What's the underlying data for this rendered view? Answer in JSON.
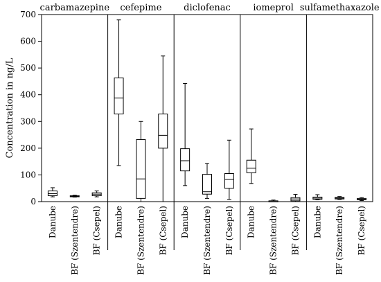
{
  "chart_data": {
    "type": "boxplot",
    "ylabel": "Concentration in ng/L",
    "ylim": [
      0,
      700
    ],
    "yticks": [
      0,
      100,
      200,
      300,
      400,
      500,
      600,
      700
    ],
    "grid": false,
    "categories": [
      "Danube",
      "BF (Szentendre)",
      "BF (Csepel)"
    ],
    "panels": [
      {
        "title": "carbamazepine",
        "boxes": [
          {
            "category": "Danube",
            "min": 18,
            "q1": 22,
            "median": 30,
            "q3": 40,
            "max": 52
          },
          {
            "category": "BF (Szentendre)",
            "min": 17,
            "q1": 19,
            "median": 20,
            "q3": 22,
            "max": 24
          },
          {
            "category": "BF (Csepel)",
            "min": 18,
            "q1": 22,
            "median": 28,
            "q3": 33,
            "max": 40
          }
        ]
      },
      {
        "title": "cefepime",
        "boxes": [
          {
            "category": "Danube",
            "min": 135,
            "q1": 328,
            "median": 388,
            "q3": 463,
            "max": 680
          },
          {
            "category": "BF (Szentendre)",
            "min": 0,
            "q1": 12,
            "median": 85,
            "q3": 232,
            "max": 300
          },
          {
            "category": "BF (Csepel)",
            "min": 0,
            "q1": 200,
            "median": 248,
            "q3": 328,
            "max": 545
          }
        ]
      },
      {
        "title": "diclofenac",
        "boxes": [
          {
            "category": "Danube",
            "min": 60,
            "q1": 115,
            "median": 153,
            "q3": 198,
            "max": 442
          },
          {
            "category": "BF (Szentendre)",
            "min": 12,
            "q1": 28,
            "median": 37,
            "q3": 102,
            "max": 143
          },
          {
            "category": "BF (Csepel)",
            "min": 8,
            "q1": 50,
            "median": 83,
            "q3": 105,
            "max": 230
          }
        ]
      },
      {
        "title": "iomeprol",
        "boxes": [
          {
            "category": "Danube",
            "min": 68,
            "q1": 108,
            "median": 125,
            "q3": 155,
            "max": 272
          },
          {
            "category": "BF (Szentendre)",
            "min": 0,
            "q1": 1,
            "median": 2,
            "q3": 3,
            "max": 6
          },
          {
            "category": "BF (Csepel)",
            "min": 0,
            "q1": 3,
            "median": 10,
            "q3": 15,
            "max": 27
          }
        ]
      },
      {
        "title": "sulfamethaxazole",
        "boxes": [
          {
            "category": "Danube",
            "min": 7,
            "q1": 9,
            "median": 13,
            "q3": 17,
            "max": 26
          },
          {
            "category": "BF (Szentendre)",
            "min": 8,
            "q1": 10,
            "median": 13,
            "q3": 16,
            "max": 19
          },
          {
            "category": "BF (Csepel)",
            "min": 4,
            "q1": 7,
            "median": 9,
            "q3": 12,
            "max": 15
          }
        ]
      }
    ]
  }
}
